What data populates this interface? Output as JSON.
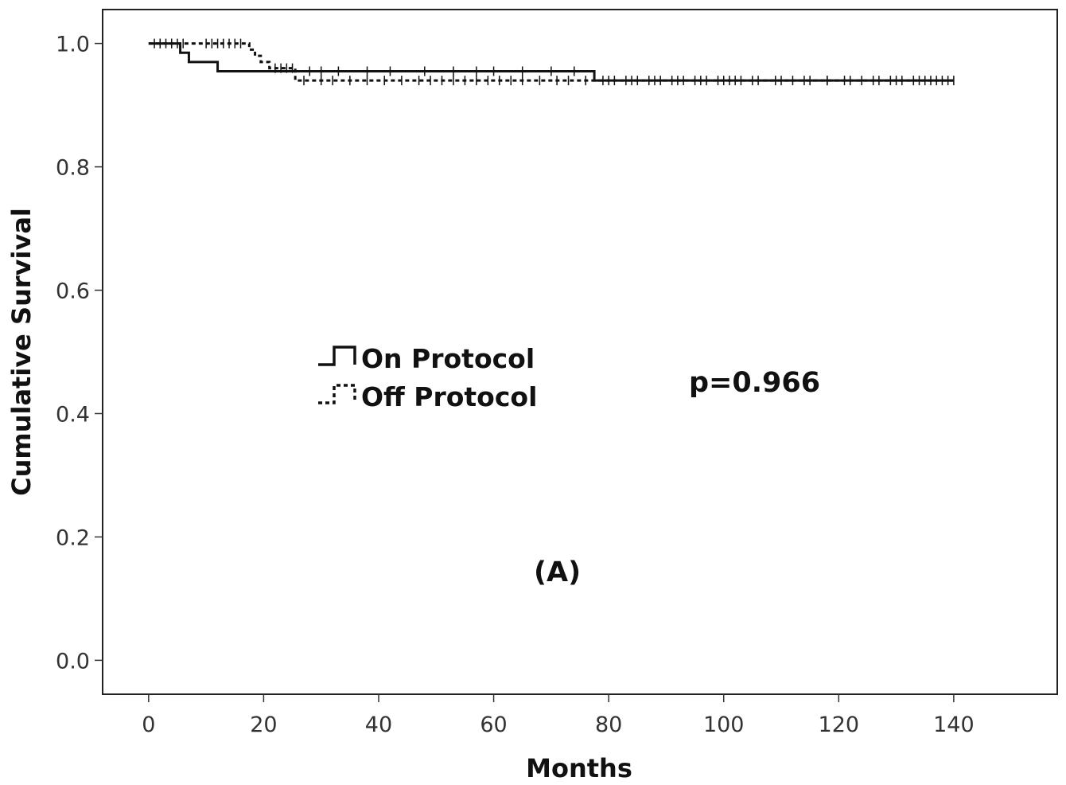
{
  "chart_data": {
    "type": "line",
    "subtype": "kaplan-meier",
    "xlabel": "Months",
    "ylabel": "Cumulative Survival",
    "xlim": [
      -8,
      158
    ],
    "ylim": [
      -0.055,
      1.055
    ],
    "xticks": [
      0,
      20,
      40,
      60,
      80,
      100,
      120,
      140
    ],
    "yticks": [
      0.0,
      0.2,
      0.4,
      0.6,
      0.8,
      1.0
    ],
    "xtick_labels": [
      "0",
      "20",
      "40",
      "60",
      "80",
      "100",
      "120",
      "140"
    ],
    "ytick_labels": [
      "0.0",
      "0.2",
      "0.4",
      "0.6",
      "0.8",
      "1.0"
    ],
    "grid": false,
    "legend_position": "center-left",
    "annotations": [
      "p=0.966",
      "(A)"
    ],
    "series": [
      {
        "name": "On Protocol",
        "style": "solid",
        "step_x": [
          0,
          5.5,
          7,
          12,
          77.5,
          140
        ],
        "step_y": [
          1.0,
          0.985,
          0.97,
          0.955,
          0.94,
          0.94
        ],
        "censored_x": [
          2,
          4,
          28,
          30,
          33,
          38,
          42,
          48,
          53,
          57,
          60,
          65,
          70,
          74,
          79,
          81,
          83,
          85,
          87,
          89,
          91,
          93,
          95,
          97,
          99,
          101,
          103,
          106,
          109,
          112,
          115,
          118,
          121,
          124,
          127,
          130,
          133,
          135,
          137,
          139
        ]
      },
      {
        "name": "Off Protocol",
        "style": "dashed",
        "step_x": [
          0,
          17.5,
          18.5,
          19.5,
          21,
          25.5,
          140
        ],
        "step_y": [
          1.0,
          0.99,
          0.98,
          0.97,
          0.96,
          0.94,
          0.94
        ],
        "censored_x": [
          1,
          2,
          3,
          4,
          5,
          6,
          10,
          11,
          12,
          13,
          14,
          15,
          16,
          22,
          23,
          24,
          25,
          27,
          30,
          32,
          35,
          38,
          41,
          44,
          47,
          49,
          51,
          53,
          55,
          57,
          59,
          61,
          63,
          65,
          68,
          71,
          73,
          76,
          80,
          84,
          88,
          92,
          96,
          100,
          102,
          105,
          110,
          114,
          118,
          122,
          126,
          129,
          131,
          133,
          134,
          136,
          138,
          140
        ]
      }
    ]
  }
}
